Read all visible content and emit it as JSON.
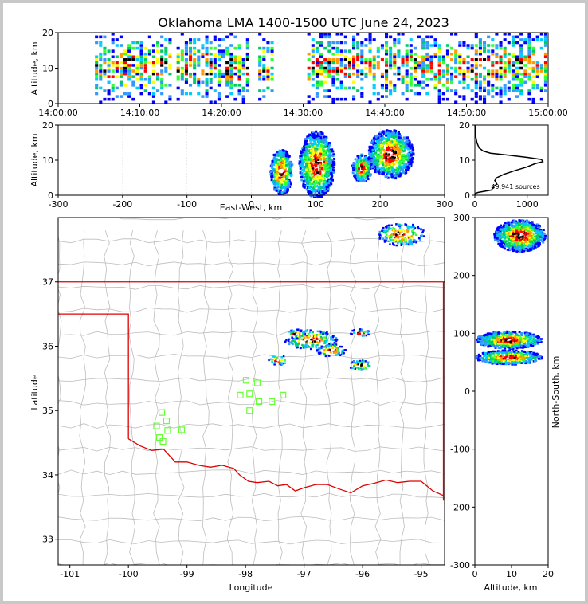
{
  "title": "Oklahoma LMA 1400-1500 UTC June 24, 2023",
  "colors": {
    "frame": "#c8c8c8",
    "axis": "#000000",
    "state_border": "#e00000",
    "county": "#bdbdbd",
    "station": "#66ff33"
  },
  "chart_data": [
    {
      "id": "time-height",
      "type": "heatmap",
      "xlabel": "",
      "ylabel": "Altitude, km",
      "xticks": [
        "14:00:00",
        "14:10:00",
        "14:20:00",
        "14:30:00",
        "14:40:00",
        "14:50:00",
        "15:00:00"
      ],
      "xlim_minutes": [
        0,
        60
      ],
      "ylim": [
        0,
        20
      ],
      "yticks": [
        0,
        10,
        20
      ],
      "activity_intervals_minutes": [
        [
          4.5,
          14.0
        ],
        [
          14.5,
          23.5
        ],
        [
          24.5,
          26.5
        ],
        [
          30.5,
          60.0
        ]
      ],
      "peak_altitude_km": 10
    },
    {
      "id": "east-west-altitude",
      "type": "heatmap",
      "xlabel": "East-West, km",
      "ylabel": "Altitude, km",
      "xlim": [
        -300,
        300
      ],
      "xticks": [
        -300,
        -200,
        -100,
        0,
        100,
        200,
        300
      ],
      "ylim": [
        0,
        20
      ],
      "yticks": [
        0,
        10,
        20
      ],
      "cells": [
        {
          "x_km": 45,
          "alt_km": 7,
          "w_km": 35,
          "h_km": 13
        },
        {
          "x_km": 100,
          "alt_km": 9,
          "w_km": 55,
          "h_km": 19
        },
        {
          "x_km": 170,
          "alt_km": 8,
          "w_km": 30,
          "h_km": 8
        },
        {
          "x_km": 215,
          "alt_km": 12,
          "w_km": 70,
          "h_km": 14
        }
      ]
    },
    {
      "id": "altitude-histogram",
      "type": "line",
      "ylim": [
        0,
        20
      ],
      "yticks": [
        0,
        10,
        20
      ],
      "xlim": [
        0,
        1400
      ],
      "xticks": [
        0,
        1000
      ],
      "annotation": "49,941 sources",
      "profile": [
        [
          0,
          0
        ],
        [
          5,
          0.5
        ],
        [
          60,
          0.8
        ],
        [
          320,
          1.5
        ],
        [
          360,
          2.5
        ],
        [
          420,
          3.2
        ],
        [
          380,
          4.2
        ],
        [
          420,
          5
        ],
        [
          560,
          6
        ],
        [
          760,
          7
        ],
        [
          980,
          8
        ],
        [
          1150,
          9
        ],
        [
          1300,
          9.6
        ],
        [
          1270,
          10.2
        ],
        [
          1000,
          10.8
        ],
        [
          600,
          11.5
        ],
        [
          300,
          12
        ],
        [
          160,
          12.6
        ],
        [
          80,
          13.5
        ],
        [
          40,
          15
        ],
        [
          20,
          16.5
        ],
        [
          10,
          18
        ],
        [
          5,
          19.5
        ],
        [
          0,
          20
        ]
      ]
    },
    {
      "id": "plan-view",
      "type": "scatter",
      "xlabel": "Longitude",
      "ylabel": "Latitude",
      "xlim": [
        -101.2,
        -94.6
      ],
      "xticks": [
        -101,
        -100,
        -99,
        -98,
        -97,
        -96,
        -95
      ],
      "ylim": [
        32.6,
        38.0
      ],
      "yticks": [
        33,
        34,
        35,
        36,
        37
      ],
      "storms": [
        {
          "lon": -96.9,
          "lat": 36.12,
          "w": 0.9,
          "h": 0.3
        },
        {
          "lon": -96.55,
          "lat": 35.95,
          "w": 0.5,
          "h": 0.2
        },
        {
          "lon": -97.15,
          "lat": 36.2,
          "w": 0.35,
          "h": 0.15
        },
        {
          "lon": -97.45,
          "lat": 35.8,
          "w": 0.35,
          "h": 0.15
        },
        {
          "lon": -96.05,
          "lat": 35.72,
          "w": 0.4,
          "h": 0.15
        },
        {
          "lon": -96.05,
          "lat": 36.22,
          "w": 0.35,
          "h": 0.12
        },
        {
          "lon": -95.35,
          "lat": 37.75,
          "w": 0.8,
          "h": 0.35
        }
      ],
      "stations": [
        {
          "lon": -99.43,
          "lat": 34.97
        },
        {
          "lon": -99.35,
          "lat": 34.84
        },
        {
          "lon": -99.52,
          "lat": 34.76
        },
        {
          "lon": -99.33,
          "lat": 34.69
        },
        {
          "lon": -99.47,
          "lat": 34.58
        },
        {
          "lon": -99.41,
          "lat": 34.52
        },
        {
          "lon": -99.09,
          "lat": 34.7
        },
        {
          "lon": -97.99,
          "lat": 35.47
        },
        {
          "lon": -97.8,
          "lat": 35.43
        },
        {
          "lon": -98.09,
          "lat": 35.24
        },
        {
          "lon": -97.93,
          "lat": 35.26
        },
        {
          "lon": -97.77,
          "lat": 35.14
        },
        {
          "lon": -97.55,
          "lat": 35.14
        },
        {
          "lon": -97.36,
          "lat": 35.24
        },
        {
          "lon": -97.93,
          "lat": 35.0
        }
      ]
    },
    {
      "id": "north-south-altitude",
      "type": "heatmap",
      "xlabel": "Altitude, km",
      "ylabel": "North-South, km",
      "xlim": [
        0,
        20
      ],
      "xticks": [
        0,
        10,
        20
      ],
      "ylim": [
        -300,
        300
      ],
      "yticks": [
        -300,
        -200,
        -100,
        0,
        100,
        200,
        300
      ],
      "cells": [
        {
          "y_km": 90,
          "alt_km": 9,
          "w_km": 18,
          "h_km": 30
        },
        {
          "y_km": 60,
          "alt_km": 9,
          "w_km": 18,
          "h_km": 25
        },
        {
          "y_km": 270,
          "alt_km": 12,
          "w_km": 14,
          "h_km": 55
        }
      ]
    }
  ]
}
